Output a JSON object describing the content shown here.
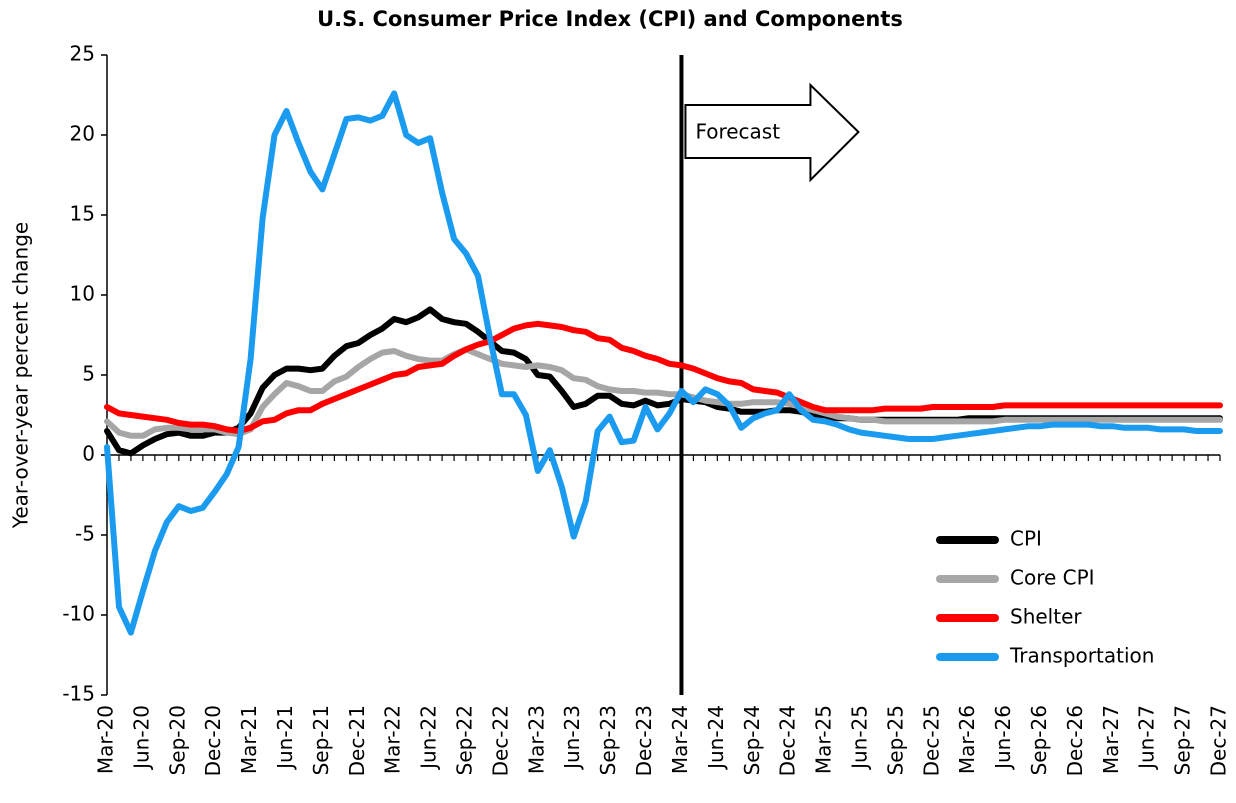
{
  "chart_data": {
    "type": "line",
    "title": "U.S. Consumer Price Index (CPI) and Components",
    "y_label": "Year-over-year percent change",
    "categories": [
      "Mar-20",
      null,
      null,
      "Jun-20",
      null,
      null,
      "Sep-20",
      null,
      null,
      "Dec-20",
      null,
      null,
      "Mar-21",
      null,
      null,
      "Jun-21",
      null,
      null,
      "Sep-21",
      null,
      null,
      "Dec-21",
      null,
      null,
      "Mar-22",
      null,
      null,
      "Jun-22",
      null,
      null,
      "Sep-22",
      null,
      null,
      "Dec-22",
      null,
      null,
      "Mar-23",
      null,
      null,
      "Jun-23",
      null,
      null,
      "Sep-23",
      null,
      null,
      "Dec-23",
      null,
      null,
      "Mar-24",
      null,
      null,
      "Jun-24",
      null,
      null,
      "Sep-24",
      null,
      null,
      "Dec-24",
      null,
      null,
      "Mar-25",
      null,
      null,
      "Jun-25",
      null,
      null,
      "Sep-25",
      null,
      null,
      "Dec-25",
      null,
      null,
      "Mar-26",
      null,
      null,
      "Jun-26",
      null,
      null,
      "Sep-26",
      null,
      null,
      "Dec-26",
      null,
      null,
      "Mar-27",
      null,
      null,
      "Jun-27",
      null,
      null,
      "Sep-27",
      null,
      null,
      "Dec-27"
    ],
    "series": [
      {
        "name": "CPI",
        "color": "#000000",
        "values": [
          1.5,
          0.3,
          0.1,
          0.6,
          1.0,
          1.3,
          1.4,
          1.2,
          1.2,
          1.4,
          1.4,
          1.7,
          2.6,
          4.2,
          5.0,
          5.4,
          5.4,
          5.3,
          5.4,
          6.2,
          6.8,
          7.0,
          7.5,
          7.9,
          8.5,
          8.3,
          8.6,
          9.1,
          8.5,
          8.3,
          8.2,
          7.7,
          7.1,
          6.5,
          6.4,
          6.0,
          5.0,
          4.9,
          4.0,
          3.0,
          3.2,
          3.7,
          3.7,
          3.2,
          3.1,
          3.4,
          3.1,
          3.2,
          3.5,
          3.4,
          3.3,
          3.0,
          2.9,
          2.7,
          2.7,
          2.7,
          2.8,
          2.8,
          2.7,
          2.5,
          2.4,
          2.3,
          2.3,
          2.2,
          2.2,
          2.2,
          2.2,
          2.2,
          2.2,
          2.2,
          2.2,
          2.2,
          2.3,
          2.3,
          2.3,
          2.3,
          2.3,
          2.3,
          2.3,
          2.3,
          2.3,
          2.3,
          2.3,
          2.3,
          2.3,
          2.3,
          2.3,
          2.3,
          2.3,
          2.3,
          2.3,
          2.3,
          2.3,
          2.3
        ]
      },
      {
        "name": "Core CPI",
        "color": "#a6a6a6",
        "values": [
          2.1,
          1.4,
          1.2,
          1.2,
          1.6,
          1.7,
          1.7,
          1.6,
          1.6,
          1.6,
          1.4,
          1.3,
          1.6,
          3.0,
          3.8,
          4.5,
          4.3,
          4.0,
          4.0,
          4.6,
          4.9,
          5.5,
          6.0,
          6.4,
          6.5,
          6.2,
          6.0,
          5.9,
          5.9,
          6.3,
          6.6,
          6.3,
          6.0,
          5.7,
          5.6,
          5.5,
          5.6,
          5.5,
          5.3,
          4.8,
          4.7,
          4.3,
          4.1,
          4.0,
          4.0,
          3.9,
          3.9,
          3.8,
          3.8,
          3.6,
          3.4,
          3.3,
          3.2,
          3.2,
          3.3,
          3.3,
          3.3,
          3.2,
          3.0,
          2.8,
          2.6,
          2.4,
          2.3,
          2.2,
          2.2,
          2.1,
          2.1,
          2.1,
          2.1,
          2.1,
          2.1,
          2.1,
          2.1,
          2.1,
          2.1,
          2.2,
          2.2,
          2.2,
          2.2,
          2.2,
          2.2,
          2.2,
          2.2,
          2.2,
          2.2,
          2.2,
          2.2,
          2.2,
          2.2,
          2.2,
          2.2,
          2.2,
          2.2,
          2.2
        ]
      },
      {
        "name": "Shelter",
        "color": "#ff0000",
        "values": [
          3.0,
          2.6,
          2.5,
          2.4,
          2.3,
          2.2,
          2.0,
          1.9,
          1.9,
          1.8,
          1.6,
          1.5,
          1.7,
          2.1,
          2.2,
          2.6,
          2.8,
          2.8,
          3.2,
          3.5,
          3.8,
          4.1,
          4.4,
          4.7,
          5.0,
          5.1,
          5.5,
          5.6,
          5.7,
          6.2,
          6.6,
          6.9,
          7.1,
          7.5,
          7.9,
          8.1,
          8.2,
          8.1,
          8.0,
          7.8,
          7.7,
          7.3,
          7.2,
          6.7,
          6.5,
          6.2,
          6.0,
          5.7,
          5.6,
          5.4,
          5.1,
          4.8,
          4.6,
          4.5,
          4.1,
          4.0,
          3.9,
          3.6,
          3.3,
          3.0,
          2.8,
          2.8,
          2.8,
          2.8,
          2.8,
          2.9,
          2.9,
          2.9,
          2.9,
          3.0,
          3.0,
          3.0,
          3.0,
          3.0,
          3.0,
          3.1,
          3.1,
          3.1,
          3.1,
          3.1,
          3.1,
          3.1,
          3.1,
          3.1,
          3.1,
          3.1,
          3.1,
          3.1,
          3.1,
          3.1,
          3.1,
          3.1,
          3.1,
          3.1
        ]
      },
      {
        "name": "Transportation",
        "color": "#1a9bf0",
        "values": [
          0.5,
          -9.5,
          -11.1,
          -8.5,
          -6.0,
          -4.2,
          -3.2,
          -3.5,
          -3.3,
          -2.3,
          -1.2,
          0.5,
          6.0,
          14.8,
          20.0,
          21.5,
          19.5,
          17.7,
          16.6,
          18.8,
          21.0,
          21.1,
          20.9,
          21.2,
          22.6,
          20.0,
          19.5,
          19.8,
          16.4,
          13.5,
          12.6,
          11.2,
          7.3,
          3.8,
          3.8,
          2.5,
          -1.0,
          0.3,
          -2.0,
          -5.1,
          -2.9,
          1.5,
          2.4,
          0.8,
          0.9,
          3.0,
          1.6,
          2.6,
          4.0,
          3.3,
          4.1,
          3.8,
          3.1,
          1.7,
          2.3,
          2.6,
          2.8,
          3.8,
          2.8,
          2.2,
          2.1,
          1.9,
          1.6,
          1.4,
          1.3,
          1.2,
          1.1,
          1.0,
          1.0,
          1.0,
          1.1,
          1.2,
          1.3,
          1.4,
          1.5,
          1.6,
          1.7,
          1.8,
          1.8,
          1.9,
          1.9,
          1.9,
          1.9,
          1.8,
          1.8,
          1.7,
          1.7,
          1.7,
          1.6,
          1.6,
          1.6,
          1.5,
          1.5,
          1.5
        ]
      }
    ],
    "ylim": [
      -15,
      25
    ],
    "yticks": [
      -15,
      -10,
      -5,
      0,
      5,
      10,
      15,
      20,
      25
    ],
    "grid": false,
    "legend": "lower right",
    "annotation": {
      "text": "Forecast",
      "x": "Mar-24"
    }
  }
}
